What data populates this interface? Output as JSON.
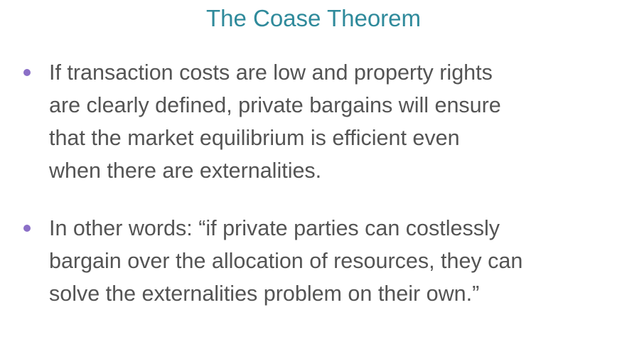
{
  "slide": {
    "title": "The Coase Theorem",
    "bullets": [
      {
        "lines": [
          "If transaction costs are low and property rights",
          "are clearly defined, private bargains will ensure",
          "that the market equilibrium is efficient even",
          "when there are externalities."
        ]
      },
      {
        "lines": [
          "In other words: “if private parties can costlessly",
          "bargain over the allocation of resources, they can",
          "solve the externalities problem on their own.”"
        ]
      }
    ],
    "colors": {
      "title": "#2f8a9b",
      "bullet_marker": "#8b6fc7",
      "body_text": "#545454",
      "background": "#ffffff"
    }
  }
}
